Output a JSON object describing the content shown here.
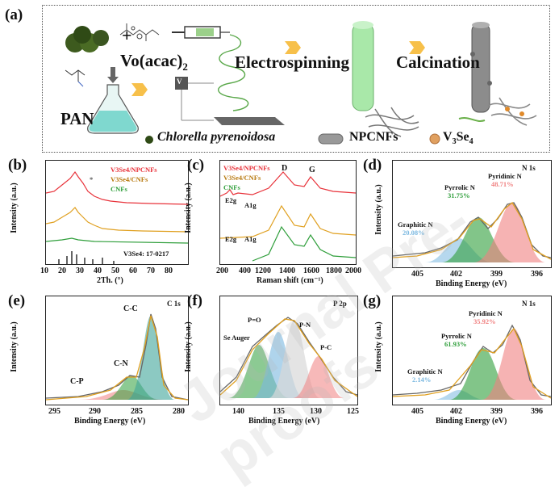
{
  "panel_labels": {
    "a": "(a)",
    "b": "(b)",
    "c": "(c)",
    "d": "(d)",
    "e": "(e)",
    "f": "(f)",
    "g": "(g)"
  },
  "schematic": {
    "vo_acac": "Vo(acac)",
    "vo_sub": "2",
    "electrospinning": "Electrospinning",
    "calcination": "Calcination",
    "pan": "PAN",
    "legend_chlorella": "Chlorella pyrenoidosa",
    "legend_npcnfs": "NPCNFs",
    "legend_v3se4": "V",
    "legend_v3se4_sub1": "3",
    "legend_v3se4_mid": "Se",
    "legend_v3se4_sub2": "4",
    "plus_sign": "+",
    "power_box": "V"
  },
  "panel_b": {
    "ylabel": "Intensity (a.u.)",
    "xlabel": "2Th. (°)",
    "xticks": [
      "10",
      "20",
      "30",
      "40",
      "50",
      "60",
      "70",
      "80"
    ],
    "legend": [
      "V3Se4/NPCNFs",
      "V3Se4/CNFs",
      "CNFs"
    ],
    "legend_colors": [
      "#e8323a",
      "#e0a020",
      "#2e9e3a"
    ],
    "ref_label": "V3Se4: 17-0217",
    "marker": "*"
  },
  "panel_c": {
    "ylabel": "Intensity (a.u.)",
    "xlabel": "Raman shift (cm⁻¹)",
    "xticks": [
      "200",
      "400",
      "1200",
      "1400",
      "1600",
      "1800",
      "2000"
    ],
    "legend": [
      "V3Se4/NPCNFs",
      "V3Se4/CNFs",
      "CNFs"
    ],
    "peaks": [
      "D",
      "G",
      "E2g",
      "A1g",
      "E2g",
      "A1g"
    ]
  },
  "panel_d": {
    "ylabel": "Intensity (a.u.)",
    "xlabel": "Binding Energy (eV)",
    "xticks": [
      "405",
      "402",
      "399",
      "396"
    ],
    "title": "N 1s",
    "components": [
      {
        "name": "Pyridinic N",
        "pct": "48.71%",
        "color": "#f08080"
      },
      {
        "name": "Pyrrolic N",
        "pct": "31.75%",
        "color": "#2e9e3a"
      },
      {
        "name": "Graphitic N",
        "pct": "20.08%",
        "color": "#7ab8e0"
      }
    ]
  },
  "panel_e": {
    "ylabel": "Intensity (a.u.)",
    "xlabel": "Binding Energy (eV)",
    "xticks": [
      "295",
      "290",
      "285",
      "280"
    ],
    "title": "C 1s",
    "peaks": [
      "C-C",
      "C-N",
      "C-P"
    ]
  },
  "panel_f": {
    "ylabel": "Intensity (a.u.)",
    "xlabel": "Binding Energy (eV)",
    "xticks": [
      "140",
      "135",
      "130",
      "125"
    ],
    "title": "P 2p",
    "peaks": [
      "P=O",
      "P-N",
      "P-C",
      "Se Auger"
    ]
  },
  "panel_g": {
    "ylabel": "Intensity (a.u.)",
    "xlabel": "Binding Energy (eV)",
    "xticks": [
      "405",
      "402",
      "399",
      "396"
    ],
    "title": "N 1s",
    "components": [
      {
        "name": "Pyridinic N",
        "pct": "35.92%",
        "color": "#f08080"
      },
      {
        "name": "Pyrrolic N",
        "pct": "61.93%",
        "color": "#2e9e3a"
      },
      {
        "name": "Graphitic N",
        "pct": "2.14%",
        "color": "#7ab8e0"
      }
    ]
  },
  "watermark": "Journal Pre-proofs"
}
